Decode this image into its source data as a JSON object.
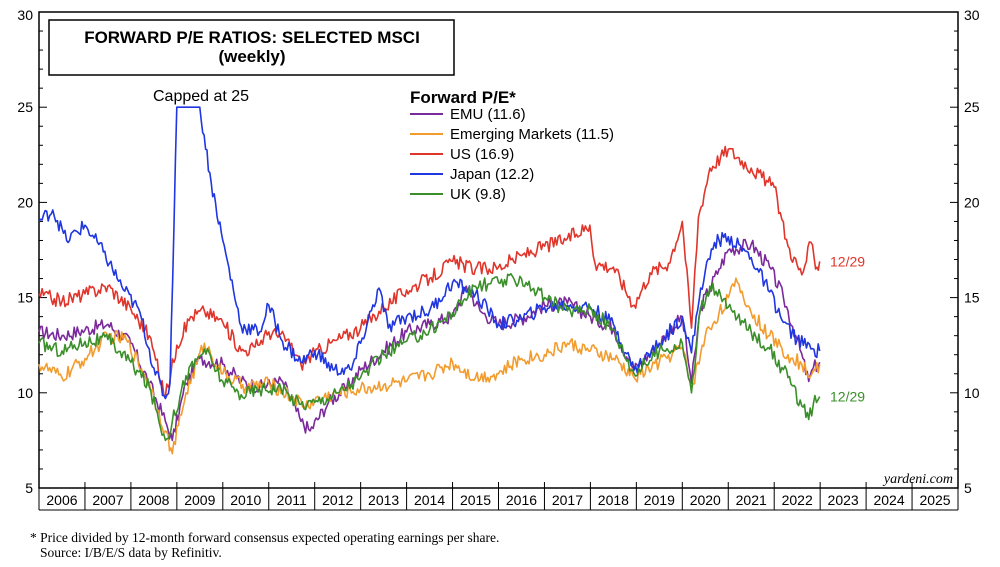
{
  "chart_data": {
    "type": "line",
    "title": "FORWARD P/E RATIOS: SELECTED MSCI",
    "subtitle": "(weekly)",
    "legend_title": "Forward P/E*",
    "annotation": "Capped at 25",
    "credit": "yardeni.com",
    "ylim": [
      5,
      30
    ],
    "yticks": [
      5,
      10,
      15,
      20,
      25,
      30
    ],
    "xlim": [
      2006,
      2026
    ],
    "years": [
      "2006",
      "2007",
      "2008",
      "2009",
      "2010",
      "2011",
      "2012",
      "2013",
      "2014",
      "2015",
      "2016",
      "2017",
      "2018",
      "2019",
      "2020",
      "2021",
      "2022",
      "2023",
      "2024",
      "2025"
    ],
    "grid": false,
    "legend_position": "top-center",
    "series": [
      {
        "name": "EMU (11.6)",
        "color": "#7b2a9b",
        "x": [
          2006.0,
          2006.5,
          2007.0,
          2007.5,
          2008.0,
          2008.4,
          2008.75,
          2008.9,
          2009.2,
          2009.5,
          2010.0,
          2010.4,
          2010.8,
          2011.3,
          2011.7,
          2011.9,
          2012.3,
          2012.7,
          2013.0,
          2013.5,
          2014.0,
          2014.5,
          2015.0,
          2015.3,
          2015.6,
          2016.0,
          2016.5,
          2017.0,
          2017.5,
          2018.0,
          2018.5,
          2018.95,
          2019.5,
          2020.0,
          2020.2,
          2020.4,
          2020.8,
          2021.0,
          2021.5,
          2021.9,
          2022.2,
          2022.5,
          2022.75,
          2022.85,
          2022.99
        ],
        "y": [
          13.2,
          13.0,
          13.3,
          13.6,
          12.6,
          10.5,
          8.5,
          7.5,
          10.5,
          11.8,
          11.5,
          10.6,
          10.3,
          10.6,
          8.5,
          8.0,
          9.5,
          10.3,
          11.2,
          12.2,
          13.2,
          13.6,
          14.0,
          15.6,
          14.3,
          13.6,
          13.9,
          14.6,
          14.7,
          14.0,
          13.4,
          11.2,
          12.6,
          14.0,
          10.5,
          14.5,
          16.5,
          17.5,
          17.8,
          16.6,
          15.0,
          12.8,
          10.6,
          11.3,
          11.6
        ]
      },
      {
        "name": "Emerging Markets (11.5)",
        "color": "#f39c2e",
        "x": [
          2006.0,
          2006.5,
          2007.0,
          2007.5,
          2007.9,
          2008.4,
          2008.75,
          2008.9,
          2009.2,
          2009.6,
          2010.0,
          2010.5,
          2011.0,
          2011.5,
          2011.8,
          2012.0,
          2012.5,
          2013.0,
          2013.5,
          2014.0,
          2014.5,
          2015.0,
          2015.5,
          2016.0,
          2016.5,
          2017.0,
          2017.5,
          2018.0,
          2018.5,
          2018.95,
          2019.5,
          2020.0,
          2020.2,
          2020.5,
          2021.0,
          2021.2,
          2021.5,
          2021.9,
          2022.3,
          2022.6,
          2022.8,
          2022.99
        ],
        "y": [
          11.5,
          10.8,
          11.8,
          13.0,
          12.8,
          10.5,
          8.0,
          6.8,
          10.0,
          12.6,
          11.0,
          10.3,
          10.5,
          9.8,
          9.3,
          9.6,
          10.0,
          10.2,
          10.4,
          10.6,
          11.0,
          11.6,
          10.8,
          11.0,
          11.8,
          12.0,
          12.6,
          12.2,
          11.8,
          10.8,
          11.6,
          12.4,
          10.2,
          13.0,
          15.0,
          15.8,
          14.2,
          13.0,
          12.0,
          11.5,
          10.9,
          11.5
        ]
      },
      {
        "name": "US (16.9)",
        "color": "#e0352b",
        "x": [
          2006.0,
          2006.5,
          2007.0,
          2007.5,
          2008.0,
          2008.4,
          2008.75,
          2009.0,
          2009.3,
          2009.6,
          2010.0,
          2010.4,
          2010.7,
          2011.0,
          2011.4,
          2011.7,
          2012.0,
          2012.5,
          2013.0,
          2013.5,
          2014.0,
          2014.5,
          2015.0,
          2015.5,
          2016.0,
          2016.5,
          2017.0,
          2017.5,
          2017.99,
          2018.1,
          2018.5,
          2018.95,
          2019.3,
          2019.7,
          2020.0,
          2020.2,
          2020.35,
          2020.6,
          2021.0,
          2021.5,
          2022.0,
          2022.3,
          2022.6,
          2022.8,
          2022.9,
          2022.99
        ],
        "y": [
          15.2,
          14.8,
          15.2,
          15.6,
          14.4,
          13.0,
          9.8,
          12.5,
          14.0,
          14.3,
          13.7,
          12.2,
          12.4,
          13.2,
          12.8,
          11.5,
          12.1,
          12.8,
          13.4,
          14.5,
          15.4,
          16.0,
          16.9,
          16.5,
          16.6,
          17.2,
          17.7,
          18.1,
          18.8,
          16.8,
          16.6,
          14.6,
          16.3,
          16.8,
          19.0,
          13.4,
          19.2,
          21.8,
          22.8,
          21.8,
          20.8,
          17.7,
          16.2,
          17.9,
          16.5,
          16.9
        ]
      },
      {
        "name": "Japan (12.2)",
        "color": "#1f36e0",
        "x": [
          2006.0,
          2006.3,
          2006.6,
          2007.0,
          2007.4,
          2007.8,
          2008.2,
          2008.5,
          2008.75,
          2008.85,
          2009.0,
          2009.5,
          2009.75,
          2010.0,
          2010.4,
          2010.8,
          2011.0,
          2011.3,
          2011.7,
          2012.0,
          2012.4,
          2012.8,
          2013.0,
          2013.4,
          2013.6,
          2014.0,
          2014.5,
          2015.0,
          2015.5,
          2016.0,
          2016.5,
          2017.0,
          2017.5,
          2018.0,
          2018.5,
          2018.95,
          2019.5,
          2020.0,
          2020.2,
          2020.4,
          2020.7,
          2021.0,
          2021.5,
          2021.9,
          2022.2,
          2022.5,
          2022.8,
          2022.99
        ],
        "y": [
          19.0,
          19.6,
          18.0,
          18.8,
          17.4,
          15.6,
          14.2,
          11.3,
          9.7,
          10.5,
          25.0,
          25.0,
          21.0,
          18.0,
          13.5,
          13.2,
          14.6,
          12.7,
          11.6,
          12.2,
          11.2,
          11.2,
          12.6,
          15.5,
          13.4,
          14.0,
          14.3,
          15.8,
          15.2,
          13.6,
          13.9,
          14.5,
          14.6,
          14.5,
          13.6,
          11.2,
          12.6,
          14.0,
          12.1,
          15.5,
          17.9,
          18.2,
          17.1,
          15.3,
          13.7,
          12.8,
          12.3,
          12.2
        ]
      },
      {
        "name": "UK (9.8)",
        "color": "#3a8f2a",
        "x": [
          2006.0,
          2006.5,
          2007.0,
          2007.5,
          2008.0,
          2008.4,
          2008.75,
          2008.9,
          2009.2,
          2009.6,
          2010.0,
          2010.4,
          2010.8,
          2011.2,
          2011.7,
          2012.0,
          2012.5,
          2013.0,
          2013.5,
          2014.0,
          2014.5,
          2015.0,
          2015.5,
          2016.0,
          2016.5,
          2017.0,
          2017.5,
          2018.0,
          2018.5,
          2018.95,
          2019.5,
          2020.0,
          2020.2,
          2020.4,
          2020.6,
          2021.0,
          2021.5,
          2021.9,
          2022.3,
          2022.6,
          2022.75,
          2022.85,
          2022.99
        ],
        "y": [
          12.6,
          12.2,
          12.7,
          12.8,
          11.6,
          10.3,
          7.5,
          8.5,
          10.9,
          12.3,
          10.6,
          9.9,
          10.2,
          10.3,
          9.4,
          9.5,
          10.0,
          10.8,
          12.0,
          12.7,
          13.3,
          14.2,
          15.6,
          15.8,
          16.0,
          15.0,
          14.3,
          14.4,
          13.3,
          11.0,
          12.2,
          12.6,
          10.0,
          14.4,
          15.6,
          14.5,
          13.2,
          12.3,
          10.8,
          9.3,
          8.6,
          9.4,
          9.8
        ]
      }
    ],
    "end_labels": [
      {
        "text": "12/29",
        "series": "US (16.9)",
        "color": "#e0352b",
        "y": 16.9
      },
      {
        "text": "12/29",
        "series": "UK (9.8)",
        "color": "#3a8f2a",
        "y": 9.8
      }
    ]
  },
  "footnotes": {
    "line1": "*   Price divided by 12-month forward consensus expected operating earnings per share.",
    "line2": "Source: I/B/E/S data by Refinitiv."
  }
}
